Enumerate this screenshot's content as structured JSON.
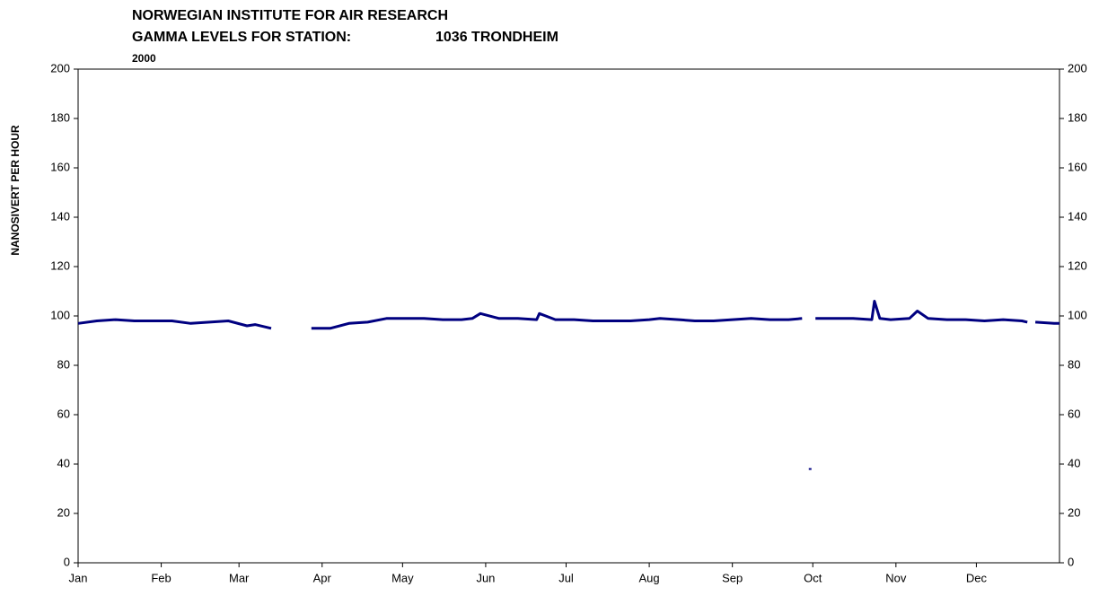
{
  "chart_data": {
    "type": "line",
    "title": "NORWEGIAN INSTITUTE FOR AIR RESEARCH",
    "subtitle": "GAMMA LEVELS FOR STATION:",
    "station": "1036 TRONDHEIM",
    "year": "2000",
    "ylabel": "NANOSIVERT PER HOUR",
    "xlim": [
      0,
      366
    ],
    "xticks": [
      {
        "value": 0,
        "label": "Jan"
      },
      {
        "value": 31,
        "label": "Feb"
      },
      {
        "value": 60,
        "label": "Mar"
      },
      {
        "value": 91,
        "label": "Apr"
      },
      {
        "value": 121,
        "label": "May"
      },
      {
        "value": 152,
        "label": "Jun"
      },
      {
        "value": 182,
        "label": "Jul"
      },
      {
        "value": 213,
        "label": "Aug"
      },
      {
        "value": 244,
        "label": "Sep"
      },
      {
        "value": 274,
        "label": "Oct"
      },
      {
        "value": 305,
        "label": "Nov"
      },
      {
        "value": 335,
        "label": "Dec"
      }
    ],
    "ylim": [
      0,
      200
    ],
    "yticks": [
      0,
      20,
      40,
      60,
      80,
      100,
      120,
      140,
      160,
      180,
      200
    ],
    "x": [
      0,
      7,
      14,
      21,
      28,
      35,
      42,
      49,
      56,
      63,
      66,
      72,
      80,
      87,
      94,
      101,
      108,
      115,
      122,
      129,
      136,
      143,
      147,
      150,
      157,
      164,
      171,
      172,
      178,
      185,
      192,
      199,
      206,
      213,
      217,
      224,
      230,
      237,
      244,
      251,
      258,
      265,
      270,
      272,
      273,
      274,
      275,
      282,
      289,
      296,
      297,
      299,
      303,
      310,
      313,
      317,
      324,
      331,
      338,
      345,
      352,
      354,
      355,
      357,
      364,
      366
    ],
    "series": [
      {
        "name": "Gamma",
        "color": "#000080",
        "values": [
          97,
          98,
          98.5,
          98,
          98,
          98,
          97,
          97.5,
          98,
          96,
          96.5,
          95,
          null,
          95,
          95,
          97,
          97.5,
          99,
          99,
          99,
          98.5,
          98.5,
          99,
          101,
          99,
          99,
          98.5,
          101,
          98.5,
          98.5,
          98,
          98,
          98,
          98.5,
          99,
          98.5,
          98,
          98,
          98.5,
          99,
          98.5,
          98.5,
          99,
          null,
          38,
          null,
          99,
          99,
          99,
          98.5,
          106,
          99,
          98.5,
          99,
          102,
          99,
          98.5,
          98.5,
          98,
          98.5,
          98,
          97.5,
          null,
          97.5,
          97,
          97
        ]
      }
    ]
  }
}
